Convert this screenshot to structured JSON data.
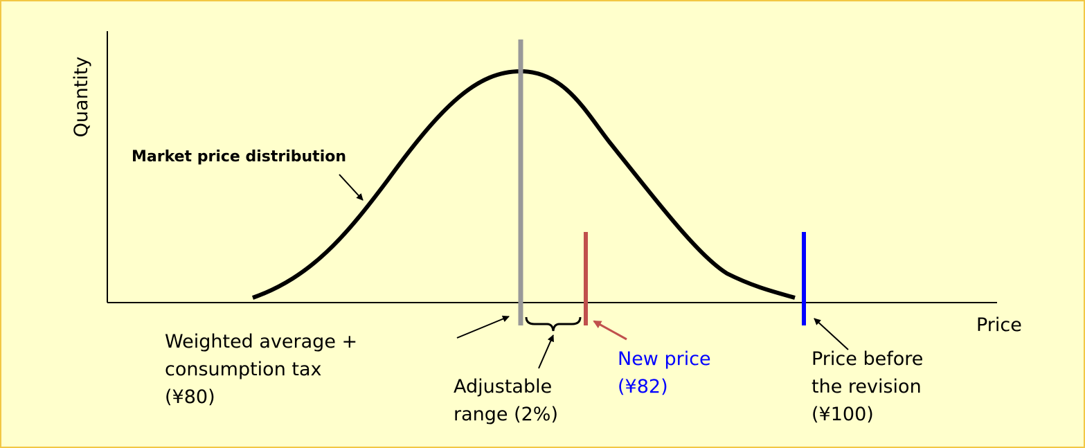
{
  "axes": {
    "y_label": "Quantity",
    "x_label": "Price"
  },
  "curve": {
    "label": "Market price distribution"
  },
  "annotations": [
    {
      "lines": [
        "Weighted average +",
        "consumption tax",
        "(¥80)"
      ]
    },
    {
      "lines": [
        "Adjustable",
        "range (2%)"
      ]
    },
    {
      "lines": [
        "New price",
        "(¥82)"
      ]
    },
    {
      "lines": [
        "Price before",
        "the revision",
        "(¥100)"
      ]
    }
  ]
}
